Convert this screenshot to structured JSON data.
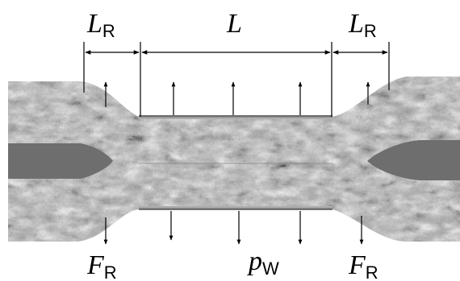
{
  "labels": {
    "left_top": {
      "symbol": "L",
      "sub": "R"
    },
    "center_top": {
      "symbol": "L",
      "sub": ""
    },
    "right_top": {
      "symbol": "L",
      "sub": "R"
    },
    "left_bottom": {
      "symbol": "F",
      "sub": "R"
    },
    "center_bottom": {
      "symbol": "p",
      "sub": "W"
    },
    "right_bottom": {
      "symbol": "F",
      "sub": "R"
    }
  },
  "colors": {
    "background": "#ffffff",
    "line": "#000000",
    "rod": "#6e6e6e",
    "texture_light": "#d6d6d6",
    "texture_dark": "#5a5a5a"
  },
  "icons": [
    "dimension-arrow-icon",
    "force-arrow-icon"
  ]
}
